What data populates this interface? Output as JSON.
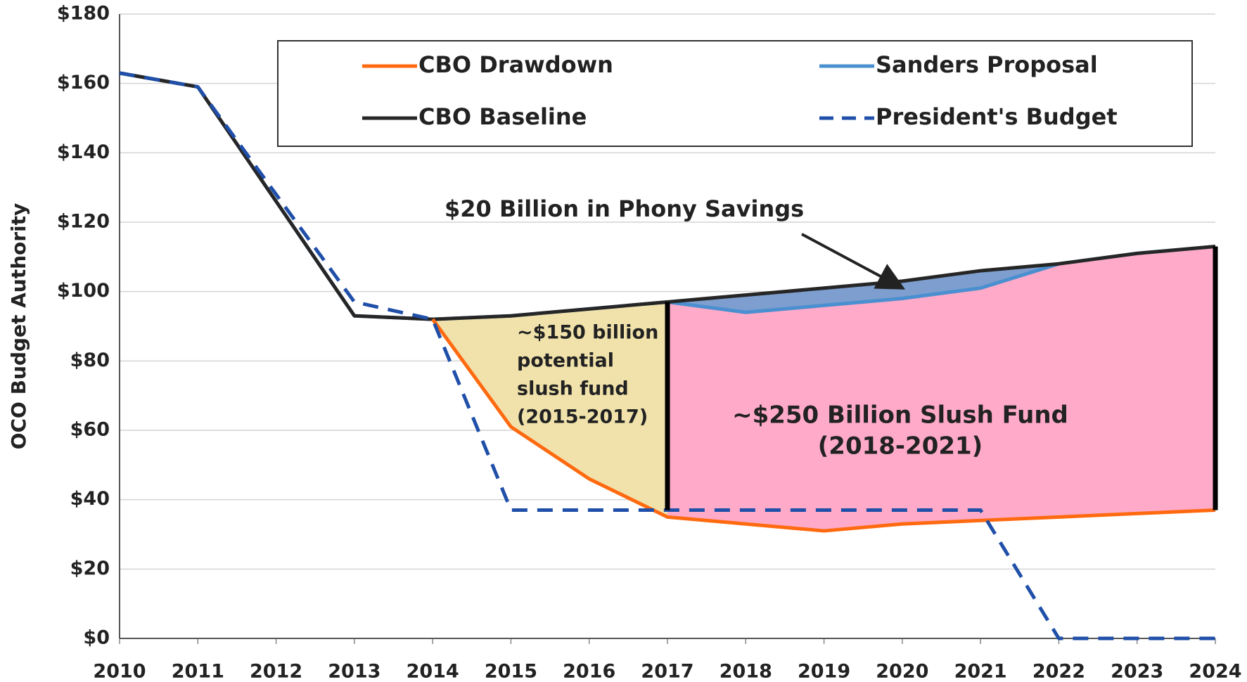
{
  "chart_data": {
    "type": "line",
    "y_label": "OCO Budget Authority",
    "x": [
      2010,
      2011,
      2012,
      2013,
      2014,
      2015,
      2016,
      2017,
      2018,
      2019,
      2020,
      2021,
      2022,
      2023,
      2024
    ],
    "xlim": [
      2010,
      2024
    ],
    "xticks": [
      2010,
      2011,
      2012,
      2013,
      2014,
      2015,
      2016,
      2017,
      2018,
      2019,
      2020,
      2021,
      2022,
      2023,
      2024
    ],
    "ylim": [
      0,
      180
    ],
    "yticks": [
      {
        "value": 0,
        "label": "$0"
      },
      {
        "value": 20,
        "label": "$20"
      },
      {
        "value": 40,
        "label": "$40"
      },
      {
        "value": 60,
        "label": "$60"
      },
      {
        "value": 80,
        "label": "$80"
      },
      {
        "value": 100,
        "label": "$100"
      },
      {
        "value": 120,
        "label": "$120"
      },
      {
        "value": 140,
        "label": "$140"
      },
      {
        "value": 160,
        "label": "$160"
      },
      {
        "value": 180,
        "label": "$180"
      }
    ],
    "grid": true,
    "series": [
      {
        "name": "CBO Drawdown",
        "color": "#ff6a10",
        "values": [
          null,
          null,
          null,
          null,
          92,
          61,
          46,
          35,
          33,
          31,
          33,
          34,
          35,
          36,
          37
        ]
      },
      {
        "name": "Sanders Proposal",
        "color": "#4a8fd0",
        "values": [
          163,
          159,
          126,
          93,
          92,
          93,
          95,
          97,
          94,
          96,
          98,
          101,
          108,
          111,
          113
        ]
      },
      {
        "name": "CBO Baseline",
        "color": "#262626",
        "values": [
          163,
          159,
          126,
          93,
          92,
          93,
          95,
          97,
          99,
          101,
          103,
          106,
          108,
          111,
          113
        ]
      },
      {
        "name": "President's Budget",
        "color": "#1f4fa8",
        "dashed": true,
        "values": [
          163,
          159,
          128,
          97,
          92,
          37,
          37,
          37,
          37,
          37,
          37,
          37,
          0,
          0,
          0
        ]
      }
    ],
    "annotations": [
      {
        "text": [
          "$20 Billion in Phony  Savings"
        ]
      },
      {
        "text": [
          "~$150 billion",
          "potential",
          "slush fund",
          "(2015-2017)"
        ]
      },
      {
        "text": [
          "~$250 Billion Slush Fund",
          "(2018-2021)"
        ]
      }
    ]
  }
}
